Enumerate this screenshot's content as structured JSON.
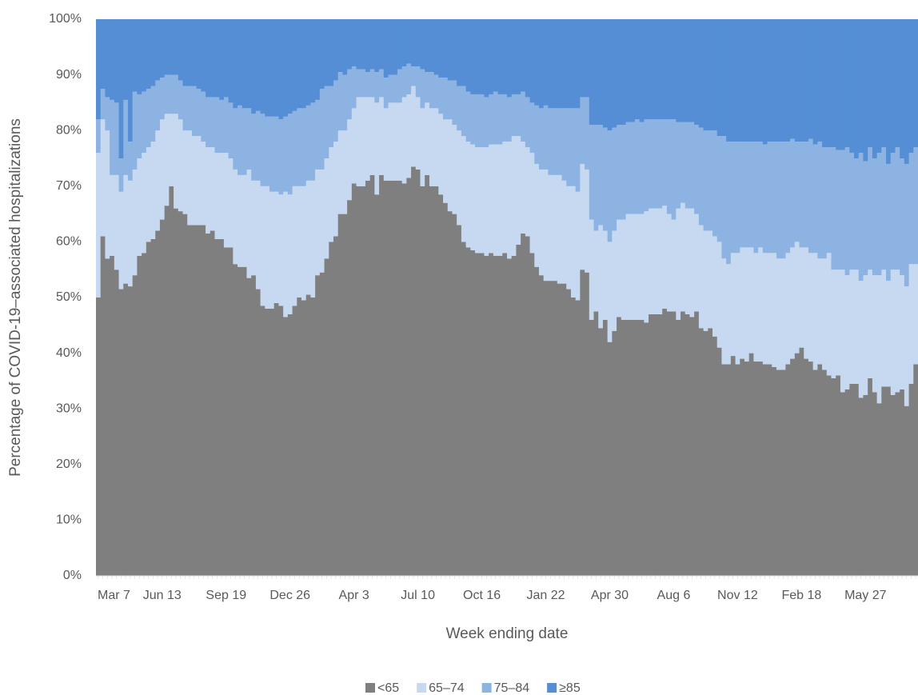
{
  "chart_data": {
    "type": "stacked_bar",
    "xlabel": "Week ending date",
    "ylabel": "Percentage of COVID-19–associated hospitalizations",
    "categories": [
      "Mar 7",
      null,
      null,
      null,
      null,
      null,
      null,
      null,
      null,
      null,
      null,
      null,
      null,
      null,
      "Jun 13",
      null,
      null,
      null,
      null,
      null,
      null,
      null,
      null,
      null,
      null,
      null,
      null,
      null,
      "Sep 19",
      null,
      null,
      null,
      null,
      null,
      null,
      null,
      null,
      null,
      null,
      null,
      null,
      null,
      "Dec 26",
      null,
      null,
      null,
      null,
      null,
      null,
      null,
      null,
      null,
      null,
      null,
      null,
      null,
      "Apr 3",
      null,
      null,
      null,
      null,
      null,
      null,
      null,
      null,
      null,
      null,
      null,
      null,
      null,
      "Jul 10",
      null,
      null,
      null,
      null,
      null,
      null,
      null,
      null,
      null,
      null,
      null,
      null,
      null,
      "Oct 16",
      null,
      null,
      null,
      null,
      null,
      null,
      null,
      null,
      null,
      null,
      null,
      null,
      null,
      "Jan 22",
      null,
      null,
      null,
      null,
      null,
      null,
      null,
      null,
      null,
      null,
      null,
      null,
      null,
      "Apr 30",
      null,
      null,
      null,
      null,
      null,
      null,
      null,
      null,
      null,
      null,
      null,
      null,
      null,
      "Aug 6",
      null,
      null,
      null,
      null,
      null,
      null,
      null,
      null,
      null,
      null,
      null,
      null,
      null,
      "Nov 12",
      null,
      null,
      null,
      null,
      null,
      null,
      null,
      null,
      null,
      null,
      null,
      null,
      null,
      "Feb 18",
      null,
      null,
      null,
      null,
      null,
      null,
      null,
      null,
      null,
      null,
      null,
      null,
      null,
      "May 27",
      null,
      null,
      null,
      null,
      null,
      null,
      null,
      null,
      null,
      null,
      null
    ],
    "series": [
      {
        "name": "<65",
        "color": "#7f7f7f",
        "values": [
          50,
          61,
          57,
          57.5,
          55,
          51.5,
          52.5,
          52,
          54,
          57.5,
          58,
          60,
          60.5,
          62,
          64,
          66.5,
          70,
          66,
          65.5,
          65,
          63,
          63,
          63,
          63,
          61.5,
          62,
          60.5,
          60.5,
          59,
          59,
          56,
          55.5,
          55.5,
          53.5,
          54,
          51.5,
          48.5,
          48,
          48,
          49,
          48.5,
          46.5,
          47,
          48.5,
          50,
          49.5,
          50.5,
          50,
          54,
          54.5,
          57,
          60,
          61,
          65,
          65,
          67.5,
          70.5,
          70,
          70,
          71,
          72,
          68.5,
          72,
          71,
          71,
          71,
          71,
          70.5,
          71.5,
          73.5,
          73,
          70,
          72,
          70,
          70,
          68.5,
          67,
          65.5,
          65,
          63,
          60,
          59,
          58.5,
          58,
          58,
          57.5,
          58,
          57.5,
          57.5,
          58,
          57,
          57.5,
          59.5,
          61.5,
          61,
          58,
          55.5,
          54,
          53,
          53,
          53,
          52.5,
          52.5,
          51.5,
          50,
          49.5,
          55,
          54.5,
          46,
          47.5,
          44.5,
          46,
          42,
          44,
          46.5,
          46,
          46,
          46,
          46,
          46,
          45.5,
          47,
          47,
          47,
          48,
          47.5,
          47.5,
          46,
          47.5,
          47,
          46.5,
          47.5,
          44.5,
          44,
          44.5,
          43,
          41,
          38,
          38,
          39.5,
          38,
          39,
          38.5,
          40,
          38.5,
          38.5,
          38,
          38,
          37.5,
          37,
          37,
          38,
          39,
          40,
          41,
          39,
          38.5,
          37,
          38,
          37,
          36,
          35.5,
          36,
          33,
          33.5,
          34.5,
          34.5,
          32,
          32.5,
          35.5,
          33,
          31,
          34,
          34,
          32.5,
          33,
          33.5,
          30.5,
          34.5,
          38
        ]
      },
      {
        "name": "65–74",
        "color": "#c6d9f1",
        "values": [
          26,
          21,
          23,
          14.5,
          17,
          17.5,
          19.5,
          19,
          19,
          17.5,
          18,
          17,
          17.5,
          18,
          18,
          16.5,
          13,
          17,
          16.5,
          15,
          17,
          16,
          16,
          15,
          15.5,
          15,
          15.5,
          15.5,
          17,
          16,
          17,
          16.5,
          16.5,
          19.5,
          17,
          19.5,
          21.5,
          22,
          21,
          20,
          20,
          22.5,
          21.5,
          21.5,
          20,
          20.5,
          20.5,
          21,
          19,
          18.5,
          18,
          17,
          17,
          15,
          15,
          14.5,
          13.5,
          16,
          16,
          15,
          14,
          16.5,
          14,
          13,
          14,
          14,
          14,
          15.5,
          15,
          14.5,
          13,
          14,
          13,
          14,
          14,
          14.5,
          15,
          16.5,
          16,
          17,
          19,
          19,
          19,
          19,
          19,
          19.5,
          19.5,
          20,
          20,
          20,
          21,
          21.5,
          19.5,
          16.5,
          16,
          18,
          18.5,
          19,
          20,
          19,
          19,
          19.5,
          18.5,
          18.5,
          20,
          19.5,
          19,
          18.5,
          18,
          14.5,
          18.5,
          16,
          18,
          18,
          17.5,
          18,
          19,
          19,
          19,
          19,
          20,
          19,
          19,
          19,
          18.5,
          17.5,
          16.5,
          20,
          19.5,
          19,
          19.5,
          17.5,
          18.5,
          18,
          17.5,
          18,
          19,
          19,
          18,
          18.5,
          20,
          20,
          20.5,
          19,
          19.5,
          20.5,
          20,
          20,
          20.5,
          20,
          20,
          20,
          20,
          20,
          18,
          20,
          19.5,
          21,
          19,
          20,
          22,
          19.5,
          19,
          22,
          20.5,
          20.5,
          20.5,
          21,
          21.5,
          19.5,
          21,
          23,
          21,
          19,
          22.5,
          22,
          20.5,
          21.5,
          21.5,
          18
        ]
      },
      {
        "name": "75–84",
        "color": "#8db3e2",
        "values": [
          6,
          5.5,
          6,
          13.5,
          13,
          6,
          13.5,
          7,
          14,
          11.5,
          11,
          10.5,
          10,
          9,
          7.5,
          7,
          7,
          7,
          7,
          8,
          8,
          9,
          8.5,
          9,
          9,
          9,
          10,
          9.5,
          10,
          10,
          11,
          12.5,
          12,
          11,
          12,
          12.5,
          13,
          12.5,
          13.5,
          13.5,
          13.5,
          13.5,
          14.5,
          13.5,
          14,
          14,
          13.5,
          14,
          12.5,
          14.5,
          13,
          11,
          11,
          10.5,
          10,
          9,
          7.5,
          5,
          5,
          4.5,
          5,
          5.5,
          5,
          5.5,
          5,
          5,
          6,
          5.5,
          5.5,
          3.5,
          5.5,
          7,
          5.5,
          6.5,
          6,
          6.5,
          7.5,
          7,
          8,
          8,
          9,
          9,
          9,
          9.5,
          9.5,
          9,
          9,
          9.5,
          9,
          8.5,
          8,
          7.5,
          7.5,
          9,
          9,
          9,
          10.5,
          11,
          11.5,
          12,
          12,
          12,
          13,
          14,
          14,
          15,
          12,
          13,
          17,
          19,
          18,
          18.5,
          20,
          18.5,
          17,
          17,
          16.5,
          16.5,
          17,
          16.5,
          16.5,
          16,
          16,
          16,
          15.5,
          17,
          18,
          15.5,
          14.5,
          15.5,
          15.5,
          16,
          17.5,
          18,
          18,
          19,
          19,
          22,
          22,
          20,
          20,
          19,
          19,
          19,
          20,
          19,
          19.5,
          20,
          20,
          21,
          21,
          20,
          19.5,
          18,
          19,
          19,
          20.5,
          19.5,
          21,
          20,
          19,
          22,
          21.5,
          21.5,
          23,
          21,
          20,
          23,
          20.5,
          22,
          21,
          22,
          22,
          21,
          21,
          22,
          21,
          22,
          20,
          21
        ]
      },
      {
        "name": "≥85",
        "color": "#558ed5",
        "values": [
          18,
          12.5,
          14,
          14.5,
          15,
          25,
          14.5,
          22,
          13,
          13.5,
          13,
          12.5,
          12,
          11,
          10.5,
          10,
          10,
          10,
          11,
          12,
          12,
          12,
          12.5,
          13,
          14,
          14,
          14,
          14.5,
          14,
          15,
          16,
          15.5,
          16,
          16,
          17,
          16.5,
          17,
          17.5,
          17.5,
          17.5,
          18,
          17.5,
          17,
          16.5,
          16,
          16,
          15.5,
          15,
          14.5,
          12.5,
          12,
          12,
          11,
          9.5,
          10,
          9,
          8.5,
          9,
          9,
          9.5,
          9,
          9.5,
          9,
          10.5,
          10,
          10,
          9,
          8.5,
          8,
          8.5,
          8.5,
          9,
          9.5,
          9.5,
          10,
          10.5,
          10.5,
          11,
          11,
          12,
          12,
          13,
          13.5,
          13.5,
          13.5,
          14,
          13.5,
          13,
          13.5,
          13.5,
          14,
          13.5,
          13.5,
          13,
          14,
          15,
          15.5,
          16,
          15.5,
          16,
          16,
          16,
          16,
          16,
          16,
          16,
          14,
          14,
          19,
          19,
          19,
          19.5,
          20,
          19.5,
          19,
          19,
          18.5,
          18.5,
          18,
          18.5,
          18,
          18,
          18,
          18,
          18,
          18,
          18,
          18.5,
          18.5,
          18.5,
          18.5,
          19,
          19.5,
          20,
          20,
          20,
          21,
          21,
          22,
          22,
          22,
          22,
          22,
          22,
          22,
          22,
          22.5,
          22,
          22,
          22,
          22,
          22,
          21.5,
          22,
          22,
          22,
          21.5,
          22.5,
          22,
          23,
          23,
          23,
          23.5,
          23.5,
          23,
          24,
          25,
          24,
          25.5,
          23,
          25,
          24,
          23,
          26,
          24,
          23,
          25,
          26,
          24,
          23
        ]
      }
    ],
    "ylim": [
      0,
      100
    ],
    "yticks": [
      {
        "value": 0,
        "label": "0%"
      },
      {
        "value": 10,
        "label": "10%"
      },
      {
        "value": 20,
        "label": "20%"
      },
      {
        "value": 30,
        "label": "30%"
      },
      {
        "value": 40,
        "label": "40%"
      },
      {
        "value": 50,
        "label": "50%"
      },
      {
        "value": 60,
        "label": "60%"
      },
      {
        "value": 70,
        "label": "70%"
      },
      {
        "value": 80,
        "label": "80%"
      },
      {
        "value": 90,
        "label": "90%"
      },
      {
        "value": 100,
        "label": "100%"
      }
    ],
    "legend": "bottom"
  }
}
